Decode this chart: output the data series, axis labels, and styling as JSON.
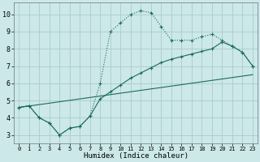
{
  "xlabel": "Humidex (Indice chaleur)",
  "bg_color": "#cce8e8",
  "grid_color": "#aacccc",
  "line_color": "#1a6b5a",
  "xlim": [
    -0.5,
    23.5
  ],
  "ylim": [
    2.5,
    10.7
  ],
  "xticks": [
    0,
    1,
    2,
    3,
    4,
    5,
    6,
    7,
    8,
    9,
    10,
    11,
    12,
    13,
    14,
    15,
    16,
    17,
    18,
    19,
    20,
    21,
    22,
    23
  ],
  "yticks": [
    3,
    4,
    5,
    6,
    7,
    8,
    9,
    10
  ],
  "line1_x": [
    0,
    1,
    2,
    3,
    4,
    5,
    6,
    7,
    8,
    9,
    10,
    11,
    12,
    13,
    14,
    15,
    16,
    17,
    18,
    19,
    20,
    21,
    22,
    23
  ],
  "line1_y": [
    4.6,
    4.7,
    4.0,
    3.7,
    3.0,
    3.4,
    3.5,
    4.1,
    6.0,
    9.0,
    9.5,
    10.0,
    10.2,
    10.1,
    9.3,
    8.5,
    8.5,
    8.5,
    8.7,
    8.85,
    8.5,
    8.15,
    7.8,
    7.0
  ],
  "line2_x": [
    0,
    1,
    2,
    3,
    4,
    5,
    6,
    7,
    8,
    9,
    10,
    11,
    12,
    13,
    14,
    15,
    16,
    17,
    18,
    19,
    20,
    21,
    22,
    23
  ],
  "line2_y": [
    4.6,
    4.7,
    4.0,
    3.7,
    3.0,
    3.4,
    3.5,
    4.1,
    5.1,
    5.5,
    5.9,
    6.3,
    6.6,
    6.9,
    7.2,
    7.4,
    7.55,
    7.7,
    7.85,
    8.0,
    8.4,
    8.15,
    7.8,
    7.0
  ],
  "line3_x": [
    0,
    23
  ],
  "line3_y": [
    4.6,
    6.5
  ]
}
